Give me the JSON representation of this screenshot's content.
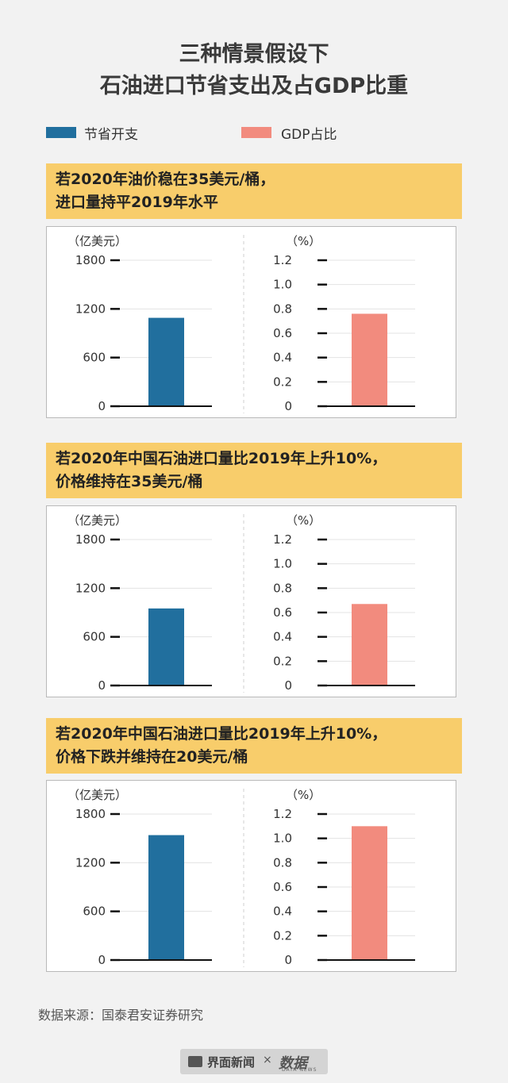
{
  "title_lines": [
    "三种情景假设下",
    "石油进口节省支出及占GDP比重"
  ],
  "legend": [
    {
      "label": "节省开支",
      "color": "#216f9e"
    },
    {
      "label": "GDP占比",
      "color": "#f28b7e"
    }
  ],
  "left_unit": "（亿美元）",
  "right_unit": "（%）",
  "source": "数据来源：国泰君安证券研究",
  "footer": {
    "brand_left": "界面新闻",
    "separator": "×",
    "brand_right": "数据",
    "brand_right_sub": "DATA NEWS"
  },
  "scenarios": [
    {
      "title_lines": [
        "若2020年油价稳在35美元/桶，",
        "进口量持平2019年水平"
      ]
    },
    {
      "title_lines": [
        "若2020年中国石油进口量比2019年上升10%，",
        "价格维持在35美元/桶"
      ]
    },
    {
      "title_lines": [
        "若2020年中国石油进口量比2019年上升10%，",
        "价格下跌并维持在20美元/桶"
      ]
    }
  ],
  "chart_data": [
    {
      "type": "bar",
      "panels": [
        {
          "series": "节省开支",
          "yticks": [
            "0",
            "600",
            "1200",
            "1800"
          ],
          "ylim": [
            0,
            1800
          ],
          "value": 1090
        },
        {
          "series": "GDP占比",
          "yticks": [
            "0",
            "0.2",
            "0.4",
            "0.6",
            "0.8",
            "1.0",
            "1.2"
          ],
          "ylim": [
            0,
            1.2
          ],
          "value": 0.76
        }
      ]
    },
    {
      "type": "bar",
      "panels": [
        {
          "series": "节省开支",
          "yticks": [
            "0",
            "600",
            "1200",
            "1800"
          ],
          "ylim": [
            0,
            1800
          ],
          "value": 950
        },
        {
          "series": "GDP占比",
          "yticks": [
            "0",
            "0.2",
            "0.4",
            "0.6",
            "0.8",
            "1.0",
            "1.2"
          ],
          "ylim": [
            0,
            1.2
          ],
          "value": 0.67
        }
      ]
    },
    {
      "type": "bar",
      "panels": [
        {
          "series": "节省开支",
          "yticks": [
            "0",
            "600",
            "1200",
            "1800"
          ],
          "ylim": [
            0,
            1800
          ],
          "value": 1540
        },
        {
          "series": "GDP占比",
          "yticks": [
            "0",
            "0.2",
            "0.4",
            "0.6",
            "0.8",
            "1.0",
            "1.2"
          ],
          "ylim": [
            0,
            1.2
          ],
          "value": 1.1
        }
      ]
    }
  ]
}
